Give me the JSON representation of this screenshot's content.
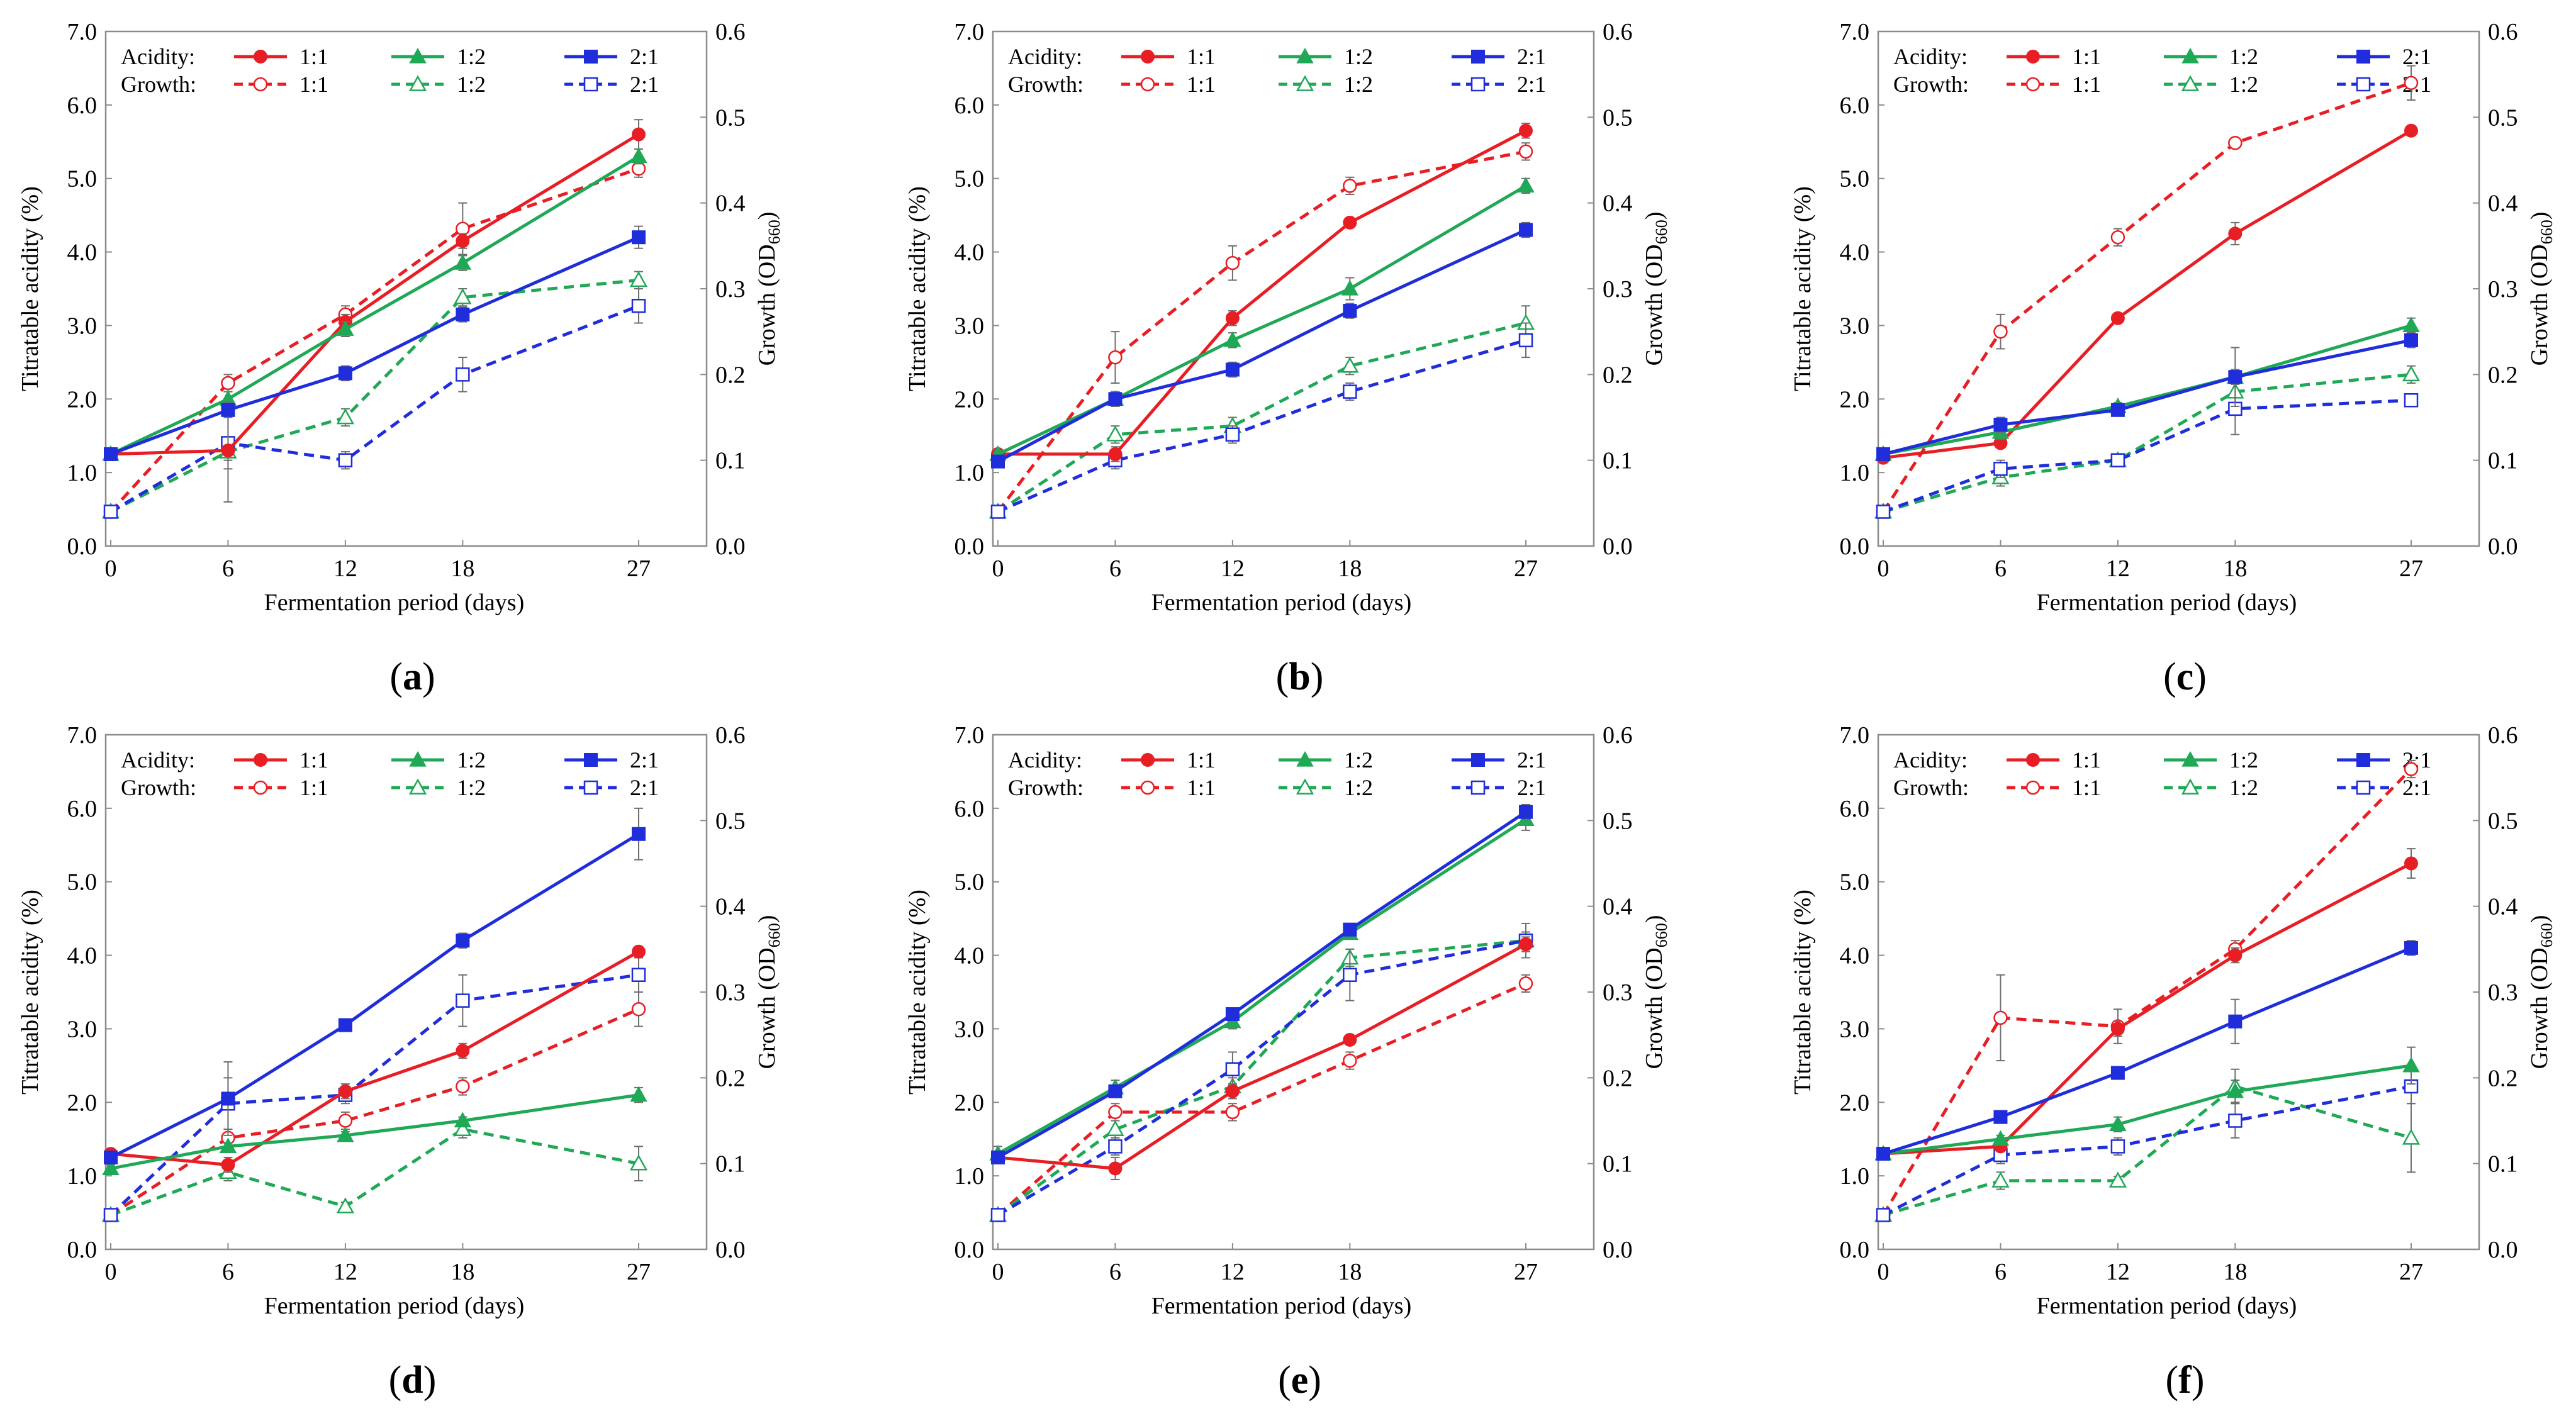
{
  "figure": {
    "x_label": "Fermentation period (days)",
    "y_left_label": "Titratable acidity (%)",
    "y_right_label_base": "Growth (OD",
    "y_right_label_sub": "660",
    "y_right_label_end": ")",
    "legend_acidity": "Acidity:",
    "legend_growth": "Growth:",
    "series_colors": {
      "1:1": "#e81e25",
      "1:2": "#1fa855",
      "2:1": "#1f2ddb"
    }
  },
  "chart_data": [
    {
      "type": "line",
      "panel": "a",
      "caption": "(a)",
      "x": [
        0,
        6,
        12,
        18,
        27
      ],
      "x_ticks": [
        "0",
        "6",
        "12",
        "18",
        "27"
      ],
      "ylim_left": [
        0,
        7
      ],
      "left_ticks": [
        "0.0",
        "1.0",
        "2.0",
        "3.0",
        "4.0",
        "5.0",
        "6.0",
        "7.0"
      ],
      "ylim_right": [
        0,
        0.6
      ],
      "right_ticks": [
        "0.0",
        "0.1",
        "0.2",
        "0.3",
        "0.4",
        "0.5",
        "0.6"
      ],
      "series": [
        {
          "name": "1:1",
          "kind": "acidity",
          "axis": "left",
          "values": [
            1.25,
            1.3,
            3.05,
            4.15,
            5.6
          ],
          "errors": [
            0.05,
            0.7,
            0.1,
            0.1,
            0.2
          ]
        },
        {
          "name": "1:2",
          "kind": "acidity",
          "axis": "left",
          "values": [
            1.25,
            2.0,
            2.95,
            3.85,
            5.3
          ],
          "errors": [
            0.05,
            0.1,
            0.1,
            0.1,
            0.1
          ]
        },
        {
          "name": "2:1",
          "kind": "acidity",
          "axis": "left",
          "values": [
            1.25,
            1.85,
            2.35,
            3.15,
            4.2
          ],
          "errors": [
            0.05,
            0.1,
            0.1,
            0.1,
            0.15
          ]
        },
        {
          "name": "1:1",
          "kind": "growth",
          "axis": "right",
          "values": [
            0.04,
            0.19,
            0.27,
            0.37,
            0.44
          ],
          "errors": [
            0.005,
            0.01,
            0.01,
            0.03,
            0.01
          ]
        },
        {
          "name": "1:2",
          "kind": "growth",
          "axis": "right",
          "values": [
            0.04,
            0.11,
            0.15,
            0.29,
            0.31
          ],
          "errors": [
            0.005,
            0.01,
            0.01,
            0.01,
            0.01
          ]
        },
        {
          "name": "2:1",
          "kind": "growth",
          "axis": "right",
          "values": [
            0.04,
            0.12,
            0.1,
            0.2,
            0.28
          ],
          "errors": [
            0.005,
            0.03,
            0.01,
            0.02,
            0.02
          ]
        }
      ]
    },
    {
      "type": "line",
      "panel": "b",
      "caption": "(b)",
      "x": [
        0,
        6,
        12,
        18,
        27
      ],
      "x_ticks": [
        "0",
        "6",
        "12",
        "18",
        "27"
      ],
      "ylim_left": [
        0,
        7
      ],
      "left_ticks": [
        "0.0",
        "1.0",
        "2.0",
        "3.0",
        "4.0",
        "5.0",
        "6.0",
        "7.0"
      ],
      "ylim_right": [
        0,
        0.6
      ],
      "right_ticks": [
        "0.0",
        "0.1",
        "0.2",
        "0.3",
        "0.4",
        "0.5",
        "0.6"
      ],
      "series": [
        {
          "name": "1:1",
          "kind": "acidity",
          "axis": "left",
          "values": [
            1.25,
            1.25,
            3.1,
            4.4,
            5.65
          ],
          "errors": [
            0.05,
            0.1,
            0.1,
            0.05,
            0.1
          ]
        },
        {
          "name": "1:2",
          "kind": "acidity",
          "axis": "left",
          "values": [
            1.25,
            2.0,
            2.8,
            3.5,
            4.9
          ],
          "errors": [
            0.05,
            0.1,
            0.1,
            0.15,
            0.1
          ]
        },
        {
          "name": "2:1",
          "kind": "acidity",
          "axis": "left",
          "values": [
            1.15,
            2.0,
            2.4,
            3.2,
            4.3
          ],
          "errors": [
            0.05,
            0.1,
            0.1,
            0.1,
            0.1
          ]
        },
        {
          "name": "1:1",
          "kind": "growth",
          "axis": "right",
          "values": [
            0.04,
            0.22,
            0.33,
            0.42,
            0.46
          ],
          "errors": [
            0.005,
            0.03,
            0.02,
            0.01,
            0.01
          ]
        },
        {
          "name": "1:2",
          "kind": "growth",
          "axis": "right",
          "values": [
            0.04,
            0.13,
            0.14,
            0.21,
            0.26
          ],
          "errors": [
            0.005,
            0.01,
            0.01,
            0.01,
            0.02
          ]
        },
        {
          "name": "2:1",
          "kind": "growth",
          "axis": "right",
          "values": [
            0.04,
            0.1,
            0.13,
            0.18,
            0.24
          ],
          "errors": [
            0.005,
            0.01,
            0.01,
            0.01,
            0.02
          ]
        }
      ]
    },
    {
      "type": "line",
      "panel": "c",
      "caption": "(c)",
      "x": [
        0,
        6,
        12,
        18,
        27
      ],
      "x_ticks": [
        "0",
        "6",
        "12",
        "18",
        "27"
      ],
      "ylim_left": [
        0,
        7
      ],
      "left_ticks": [
        "0.0",
        "1.0",
        "2.0",
        "3.0",
        "4.0",
        "5.0",
        "6.0",
        "7.0"
      ],
      "ylim_right": [
        0,
        0.6
      ],
      "right_ticks": [
        "0.0",
        "0.1",
        "0.2",
        "0.3",
        "0.4",
        "0.5",
        "0.6"
      ],
      "series": [
        {
          "name": "1:1",
          "kind": "acidity",
          "axis": "left",
          "values": [
            1.2,
            1.4,
            3.1,
            4.25,
            5.65
          ],
          "errors": [
            0.05,
            0.05,
            0.05,
            0.15,
            0.05
          ]
        },
        {
          "name": "1:2",
          "kind": "acidity",
          "axis": "left",
          "values": [
            1.25,
            1.55,
            1.9,
            2.3,
            3.0
          ],
          "errors": [
            0.05,
            0.1,
            0.05,
            0.1,
            0.1
          ]
        },
        {
          "name": "2:1",
          "kind": "acidity",
          "axis": "left",
          "values": [
            1.25,
            1.65,
            1.85,
            2.3,
            2.8
          ],
          "errors": [
            0.05,
            0.1,
            0.05,
            0.4,
            0.1
          ]
        },
        {
          "name": "1:1",
          "kind": "growth",
          "axis": "right",
          "values": [
            0.04,
            0.25,
            0.36,
            0.47,
            0.54
          ],
          "errors": [
            0.005,
            0.02,
            0.01,
            0.005,
            0.02
          ]
        },
        {
          "name": "1:2",
          "kind": "growth",
          "axis": "right",
          "values": [
            0.04,
            0.08,
            0.1,
            0.18,
            0.2
          ],
          "errors": [
            0.005,
            0.01,
            0.005,
            0.02,
            0.01
          ]
        },
        {
          "name": "2:1",
          "kind": "growth",
          "axis": "right",
          "values": [
            0.04,
            0.09,
            0.1,
            0.16,
            0.17
          ],
          "errors": [
            0.005,
            0.01,
            0.005,
            0.03,
            0.005
          ]
        }
      ]
    },
    {
      "type": "line",
      "panel": "d",
      "caption": "(d)",
      "x": [
        0,
        6,
        12,
        18,
        27
      ],
      "x_ticks": [
        "0",
        "6",
        "12",
        "18",
        "27"
      ],
      "ylim_left": [
        0,
        7
      ],
      "left_ticks": [
        "0.0",
        "1.0",
        "2.0",
        "3.0",
        "4.0",
        "5.0",
        "6.0",
        "7.0"
      ],
      "ylim_right": [
        0,
        0.6
      ],
      "right_ticks": [
        "0.0",
        "0.1",
        "0.2",
        "0.3",
        "0.4",
        "0.5",
        "0.6"
      ],
      "series": [
        {
          "name": "1:1",
          "kind": "acidity",
          "axis": "left",
          "values": [
            1.3,
            1.15,
            2.15,
            2.7,
            4.05
          ],
          "errors": [
            0.05,
            0.1,
            0.1,
            0.1,
            0.05
          ]
        },
        {
          "name": "1:2",
          "kind": "acidity",
          "axis": "left",
          "values": [
            1.1,
            1.4,
            1.55,
            1.75,
            2.1
          ],
          "errors": [
            0.05,
            0.05,
            0.05,
            0.05,
            0.1
          ]
        },
        {
          "name": "2:1",
          "kind": "acidity",
          "axis": "left",
          "values": [
            1.25,
            2.05,
            3.05,
            4.2,
            5.65
          ],
          "errors": [
            0.05,
            0.5,
            0.05,
            0.1,
            0.35
          ]
        },
        {
          "name": "1:1",
          "kind": "growth",
          "axis": "right",
          "values": [
            0.04,
            0.13,
            0.15,
            0.19,
            0.28
          ],
          "errors": [
            0.005,
            0.01,
            0.01,
            0.01,
            0.02
          ]
        },
        {
          "name": "1:2",
          "kind": "growth",
          "axis": "right",
          "values": [
            0.04,
            0.09,
            0.05,
            0.14,
            0.1
          ],
          "errors": [
            0.005,
            0.01,
            0.005,
            0.01,
            0.02
          ]
        },
        {
          "name": "2:1",
          "kind": "growth",
          "axis": "right",
          "values": [
            0.04,
            0.17,
            0.18,
            0.29,
            0.32
          ],
          "errors": [
            0.005,
            0.03,
            0.01,
            0.03,
            0.02
          ]
        }
      ]
    },
    {
      "type": "line",
      "panel": "e",
      "caption": "(e)",
      "x": [
        0,
        6,
        12,
        18,
        27
      ],
      "x_ticks": [
        "0",
        "6",
        "12",
        "18",
        "27"
      ],
      "ylim_left": [
        0,
        7
      ],
      "left_ticks": [
        "0.0",
        "1.0",
        "2.0",
        "3.0",
        "4.0",
        "5.0",
        "6.0",
        "7.0"
      ],
      "ylim_right": [
        0,
        0.6
      ],
      "right_ticks": [
        "0.0",
        "0.1",
        "0.2",
        "0.3",
        "0.4",
        "0.5",
        "0.6"
      ],
      "series": [
        {
          "name": "1:1",
          "kind": "acidity",
          "axis": "left",
          "values": [
            1.25,
            1.1,
            2.15,
            2.85,
            4.15
          ],
          "errors": [
            0.05,
            0.15,
            0.1,
            0.05,
            0.1
          ]
        },
        {
          "name": "1:2",
          "kind": "acidity",
          "axis": "left",
          "values": [
            1.3,
            2.2,
            3.1,
            4.3,
            5.85
          ],
          "errors": [
            0.1,
            0.1,
            0.1,
            0.05,
            0.15
          ]
        },
        {
          "name": "2:1",
          "kind": "acidity",
          "axis": "left",
          "values": [
            1.25,
            2.15,
            3.2,
            4.35,
            5.95
          ],
          "errors": [
            0.05,
            0.05,
            0.05,
            0.05,
            0.1
          ]
        },
        {
          "name": "1:1",
          "kind": "growth",
          "axis": "right",
          "values": [
            0.04,
            0.16,
            0.16,
            0.22,
            0.31
          ],
          "errors": [
            0.005,
            0.01,
            0.01,
            0.01,
            0.01
          ]
        },
        {
          "name": "1:2",
          "kind": "growth",
          "axis": "right",
          "values": [
            0.04,
            0.14,
            0.19,
            0.34,
            0.36
          ],
          "errors": [
            0.005,
            0.01,
            0.01,
            0.01,
            0.02
          ]
        },
        {
          "name": "2:1",
          "kind": "growth",
          "axis": "right",
          "values": [
            0.04,
            0.12,
            0.21,
            0.32,
            0.36
          ],
          "errors": [
            0.005,
            0.01,
            0.02,
            0.03,
            0.01
          ]
        }
      ]
    },
    {
      "type": "line",
      "panel": "f",
      "caption": "(f)",
      "x": [
        0,
        6,
        12,
        18,
        27
      ],
      "x_ticks": [
        "0",
        "6",
        "12",
        "18",
        "27"
      ],
      "ylim_left": [
        0,
        7
      ],
      "left_ticks": [
        "0.0",
        "1.0",
        "2.0",
        "3.0",
        "4.0",
        "5.0",
        "6.0",
        "7.0"
      ],
      "ylim_right": [
        0,
        0.6
      ],
      "right_ticks": [
        "0.0",
        "0.1",
        "0.2",
        "0.3",
        "0.4",
        "0.5",
        "0.6"
      ],
      "series": [
        {
          "name": "1:1",
          "kind": "acidity",
          "axis": "left",
          "values": [
            1.3,
            1.4,
            3.0,
            4.0,
            5.25
          ],
          "errors": [
            0.05,
            0.05,
            0.1,
            0.1,
            0.2
          ]
        },
        {
          "name": "1:2",
          "kind": "acidity",
          "axis": "left",
          "values": [
            1.3,
            1.5,
            1.7,
            2.15,
            2.5
          ],
          "errors": [
            0.05,
            0.05,
            0.1,
            0.15,
            0.25
          ]
        },
        {
          "name": "2:1",
          "kind": "acidity",
          "axis": "left",
          "values": [
            1.3,
            1.8,
            2.4,
            3.1,
            4.1
          ],
          "errors": [
            0.05,
            0.05,
            0.05,
            0.3,
            0.1
          ]
        },
        {
          "name": "1:1",
          "kind": "growth",
          "axis": "right",
          "values": [
            0.04,
            0.27,
            0.26,
            0.35,
            0.56
          ],
          "errors": [
            0.005,
            0.05,
            0.02,
            0.01,
            0.01
          ]
        },
        {
          "name": "1:2",
          "kind": "growth",
          "axis": "right",
          "values": [
            0.04,
            0.08,
            0.08,
            0.19,
            0.13
          ],
          "errors": [
            0.005,
            0.01,
            0.005,
            0.02,
            0.04
          ]
        },
        {
          "name": "2:1",
          "kind": "growth",
          "axis": "right",
          "values": [
            0.04,
            0.11,
            0.12,
            0.15,
            0.19
          ],
          "errors": [
            0.005,
            0.01,
            0.01,
            0.02,
            0.02
          ]
        }
      ]
    }
  ]
}
